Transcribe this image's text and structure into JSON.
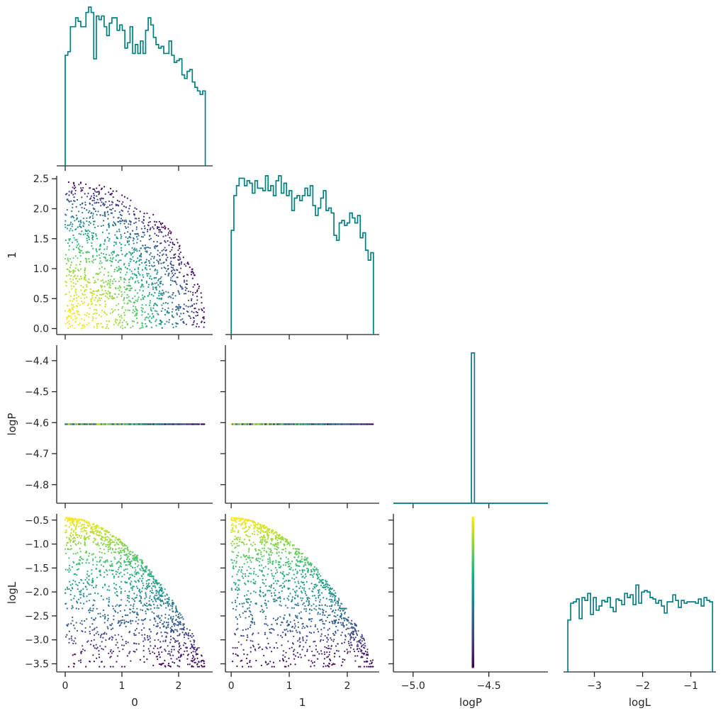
{
  "chart_data": {
    "type": "scatter",
    "layout": "corner-pairplot",
    "variables": [
      "0",
      "1",
      "logP",
      "logL"
    ],
    "axis_ranges": {
      "0": [
        -0.15,
        2.6
      ],
      "1": [
        -0.1,
        2.55
      ],
      "logP": [
        -4.86,
        -4.35
      ],
      "logL": [
        -3.67,
        -0.37
      ],
      "logP_hist_x": [
        -5.13,
        -4.11
      ],
      "logL_hist_x": [
        -3.64,
        -0.48
      ]
    },
    "ticks": {
      "0": [
        0,
        1,
        2
      ],
      "1": [
        0.0,
        0.5,
        1.0,
        1.5,
        2.0,
        2.5
      ],
      "logP_y": [
        -4.4,
        -4.5,
        -4.6,
        -4.7,
        -4.8
      ],
      "logP_x": [
        -5.0,
        -4.5
      ],
      "logL_y": [
        -0.5,
        -1.0,
        -1.5,
        -2.0,
        -2.5,
        -3.0,
        -3.5
      ],
      "logL_x": [
        -3,
        -2,
        -1
      ]
    },
    "tick_labels": {
      "0": [
        "0",
        "1",
        "2"
      ],
      "1_y": [
        "0.0",
        "0.5",
        "1.0",
        "1.5",
        "2.0",
        "2.5"
      ],
      "1_x": [
        "0",
        "1",
        "2"
      ],
      "logP_y": [
        "−4.4",
        "−4.5",
        "−4.6",
        "−4.7",
        "−4.8"
      ],
      "logP_x": [
        "−5.0",
        "−4.5"
      ],
      "logL_y": [
        "−0.5",
        "−1.0",
        "−1.5",
        "−2.0",
        "−2.5",
        "−3.0",
        "−3.5"
      ],
      "logL_x": [
        "−3",
        "−2",
        "−1"
      ]
    },
    "axis_labels": {
      "x": [
        "0",
        "1",
        "logP",
        "logL"
      ],
      "y": [
        "1",
        "logP",
        "logL"
      ]
    },
    "constant_logP": -4.605,
    "colormap": "viridis",
    "color_variable": "logL",
    "n_points": 1500,
    "histograms": {
      "0": {
        "range": [
          0.0,
          2.47
        ],
        "counts": [
          62,
          64,
          78,
          78,
          83,
          81,
          78,
          78,
          86,
          89,
          86,
          60,
          84,
          82,
          84,
          78,
          73,
          80,
          83,
          83,
          76,
          79,
          76,
          66,
          69,
          78,
          63,
          68,
          63,
          70,
          63,
          76,
          83,
          79,
          72,
          68,
          66,
          67,
          63,
          63,
          70,
          62,
          58,
          59,
          60,
          51,
          49,
          53,
          54,
          47,
          44,
          42,
          40,
          42
        ]
      },
      "1": {
        "range": [
          0.0,
          2.45
        ],
        "counts": [
          42,
          56,
          60,
          63,
          63,
          60,
          62,
          61,
          57,
          62,
          59,
          59,
          58,
          64,
          58,
          60,
          56,
          62,
          64,
          57,
          61,
          56,
          58,
          50,
          55,
          56,
          54,
          56,
          59,
          56,
          60,
          52,
          48,
          51,
          55,
          58,
          50,
          51,
          49,
          40,
          38,
          45,
          46,
          44,
          45,
          49,
          47,
          45,
          48,
          39,
          41,
          34,
          30,
          33
        ]
      },
      "logP": {
        "edges": [
          -4.615,
          -4.595
        ],
        "count": 1500
      },
      "logL": {
        "range": [
          -3.55,
          -0.55
        ],
        "counts": [
          37,
          49,
          50,
          52,
          38,
          53,
          51,
          56,
          41,
          53,
          44,
          47,
          51,
          50,
          53,
          46,
          43,
          52,
          51,
          48,
          56,
          53,
          55,
          48,
          62,
          49,
          57,
          58,
          57,
          53,
          52,
          49,
          51,
          47,
          42,
          50,
          50,
          55,
          51,
          46,
          51,
          49,
          50,
          50,
          50,
          49,
          52,
          47,
          53,
          51,
          50
        ]
      }
    }
  }
}
